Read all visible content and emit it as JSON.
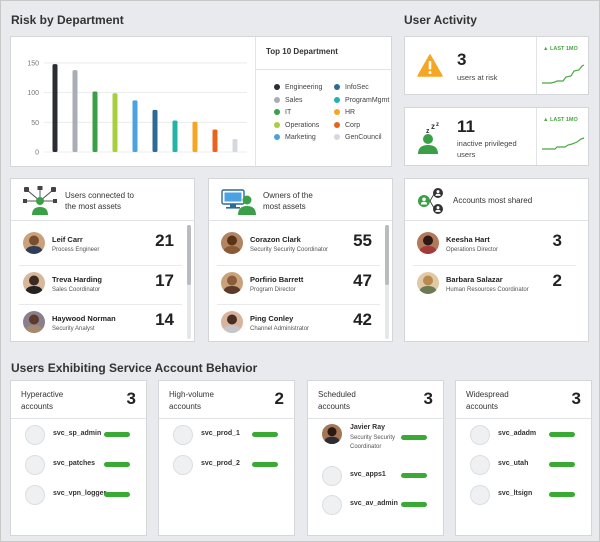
{
  "risk": {
    "title": "Risk by Department",
    "legend_title": "Top 10 Department",
    "y_ticks": [
      "150",
      "100",
      "50",
      "0"
    ],
    "legend": [
      {
        "label": "Engineering",
        "color": "#2b2d33"
      },
      {
        "label": "InfoSec",
        "color": "#2e6a96"
      },
      {
        "label": "Sales",
        "color": "#a9adb4"
      },
      {
        "label": "ProgramMgmt",
        "color": "#23b3a7"
      },
      {
        "label": "IT",
        "color": "#3aa047"
      },
      {
        "label": "HR",
        "color": "#f5a623"
      },
      {
        "label": "Operations",
        "color": "#a8cf3c"
      },
      {
        "label": "Corp",
        "color": "#e8641e"
      },
      {
        "label": "Marketing",
        "color": "#4aa3e0"
      },
      {
        "label": "GenCouncil",
        "color": "#d5d8de"
      }
    ]
  },
  "chart_data": {
    "type": "bar",
    "categories": [
      "Engineering",
      "Sales",
      "IT",
      "Operations",
      "Marketing",
      "InfoSec",
      "ProgramMgmt",
      "HR",
      "Corp",
      "GenCouncil"
    ],
    "values": [
      148,
      138,
      102,
      99,
      87,
      71,
      53,
      51,
      38,
      22
    ],
    "colors": [
      "#2b2d33",
      "#a9adb4",
      "#3aa047",
      "#a8cf3c",
      "#4aa3e0",
      "#2e6a96",
      "#23b3a7",
      "#f5a623",
      "#e8641e",
      "#d5d8de"
    ],
    "ylim": [
      0,
      160
    ],
    "yticks": [
      0,
      50,
      100,
      150
    ],
    "grid": true
  },
  "activity": {
    "title": "User Activity",
    "spark_label": "LAST 1MO",
    "at_risk": {
      "count": "3",
      "label": "users at risk"
    },
    "privileged": {
      "count": "11",
      "label_1": "inactive privileged",
      "label_2": "users"
    }
  },
  "connected": {
    "title_1": "Users connected to",
    "title_2": "the most assets",
    "rows": [
      {
        "name": "Leif Carr",
        "title": "Process Engineer",
        "count": "21"
      },
      {
        "name": "Treva Harding",
        "title": "Sales Coordinator",
        "count": "17"
      },
      {
        "name": "Haywood Norman",
        "title": "Security Analyst",
        "count": "14"
      }
    ]
  },
  "owners": {
    "title_1": "Owners of the",
    "title_2": "most assets",
    "rows": [
      {
        "name": "Corazon Clark",
        "title": "Security Security Coordinator",
        "count": "55"
      },
      {
        "name": "Porfirio Barrett",
        "title": "Program Director",
        "count": "47"
      },
      {
        "name": "Ping Conley",
        "title": "Channel Administrator",
        "count": "42"
      }
    ]
  },
  "shared": {
    "title": "Accounts most shared",
    "rows": [
      {
        "name": "Keesha Hart",
        "title": "Operations Director",
        "count": "3"
      },
      {
        "name": "Barbara Salazar",
        "title": "Human Resources Coordinator",
        "count": "2"
      }
    ]
  },
  "service": {
    "title": "Users Exhibiting Service Account Behavior",
    "cards": [
      {
        "title_1": "Hyperactive",
        "title_2": "accounts",
        "count": "3",
        "rows": [
          "svc_sp_admin",
          "svc_patches",
          "svc_vpn_logger"
        ]
      },
      {
        "title_1": "High-volume",
        "title_2": "accounts",
        "count": "2",
        "rows": [
          "svc_prod_1",
          "svc_prod_2"
        ]
      },
      {
        "title_1": "Scheduled",
        "title_2": "accounts",
        "count": "3",
        "person": {
          "name": "Javier Ray",
          "title_1": "Security Security",
          "title_2": "Coordinator"
        },
        "rows": [
          "svc_apps1",
          "svc_av_admin"
        ]
      },
      {
        "title_1": "Widespread",
        "title_2": "accounts",
        "count": "3",
        "rows": [
          "svc_adadm",
          "svc_utah",
          "svc_ltsign"
        ]
      }
    ]
  }
}
